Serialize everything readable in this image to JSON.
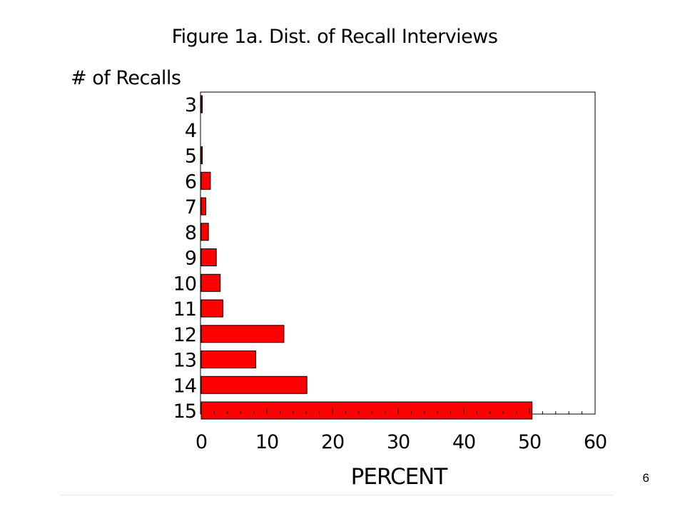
{
  "slide": {
    "number": "6"
  },
  "chart_data": {
    "type": "bar",
    "orientation": "horizontal",
    "title": "Figure 1a.   Dist. of Recall Interviews",
    "ylabel": "# of Recalls",
    "xlabel": "PERCENT",
    "categories": [
      "3",
      "4",
      "5",
      "6",
      "7",
      "8",
      "9",
      "10",
      "11",
      "12",
      "13",
      "14",
      "15"
    ],
    "values": [
      0.1,
      0,
      0.1,
      1.4,
      0.7,
      1.1,
      2.3,
      2.9,
      3.3,
      12.6,
      8.3,
      16.1,
      50.4
    ],
    "xlim": [
      0,
      60
    ],
    "xticks": [
      "0",
      "10",
      "20",
      "30",
      "40",
      "50",
      "60"
    ],
    "minor_ticks_per_major": 5,
    "grid": false,
    "legend": "none",
    "bar_color": "#ff0000",
    "bar_edge_color": "#000000"
  }
}
